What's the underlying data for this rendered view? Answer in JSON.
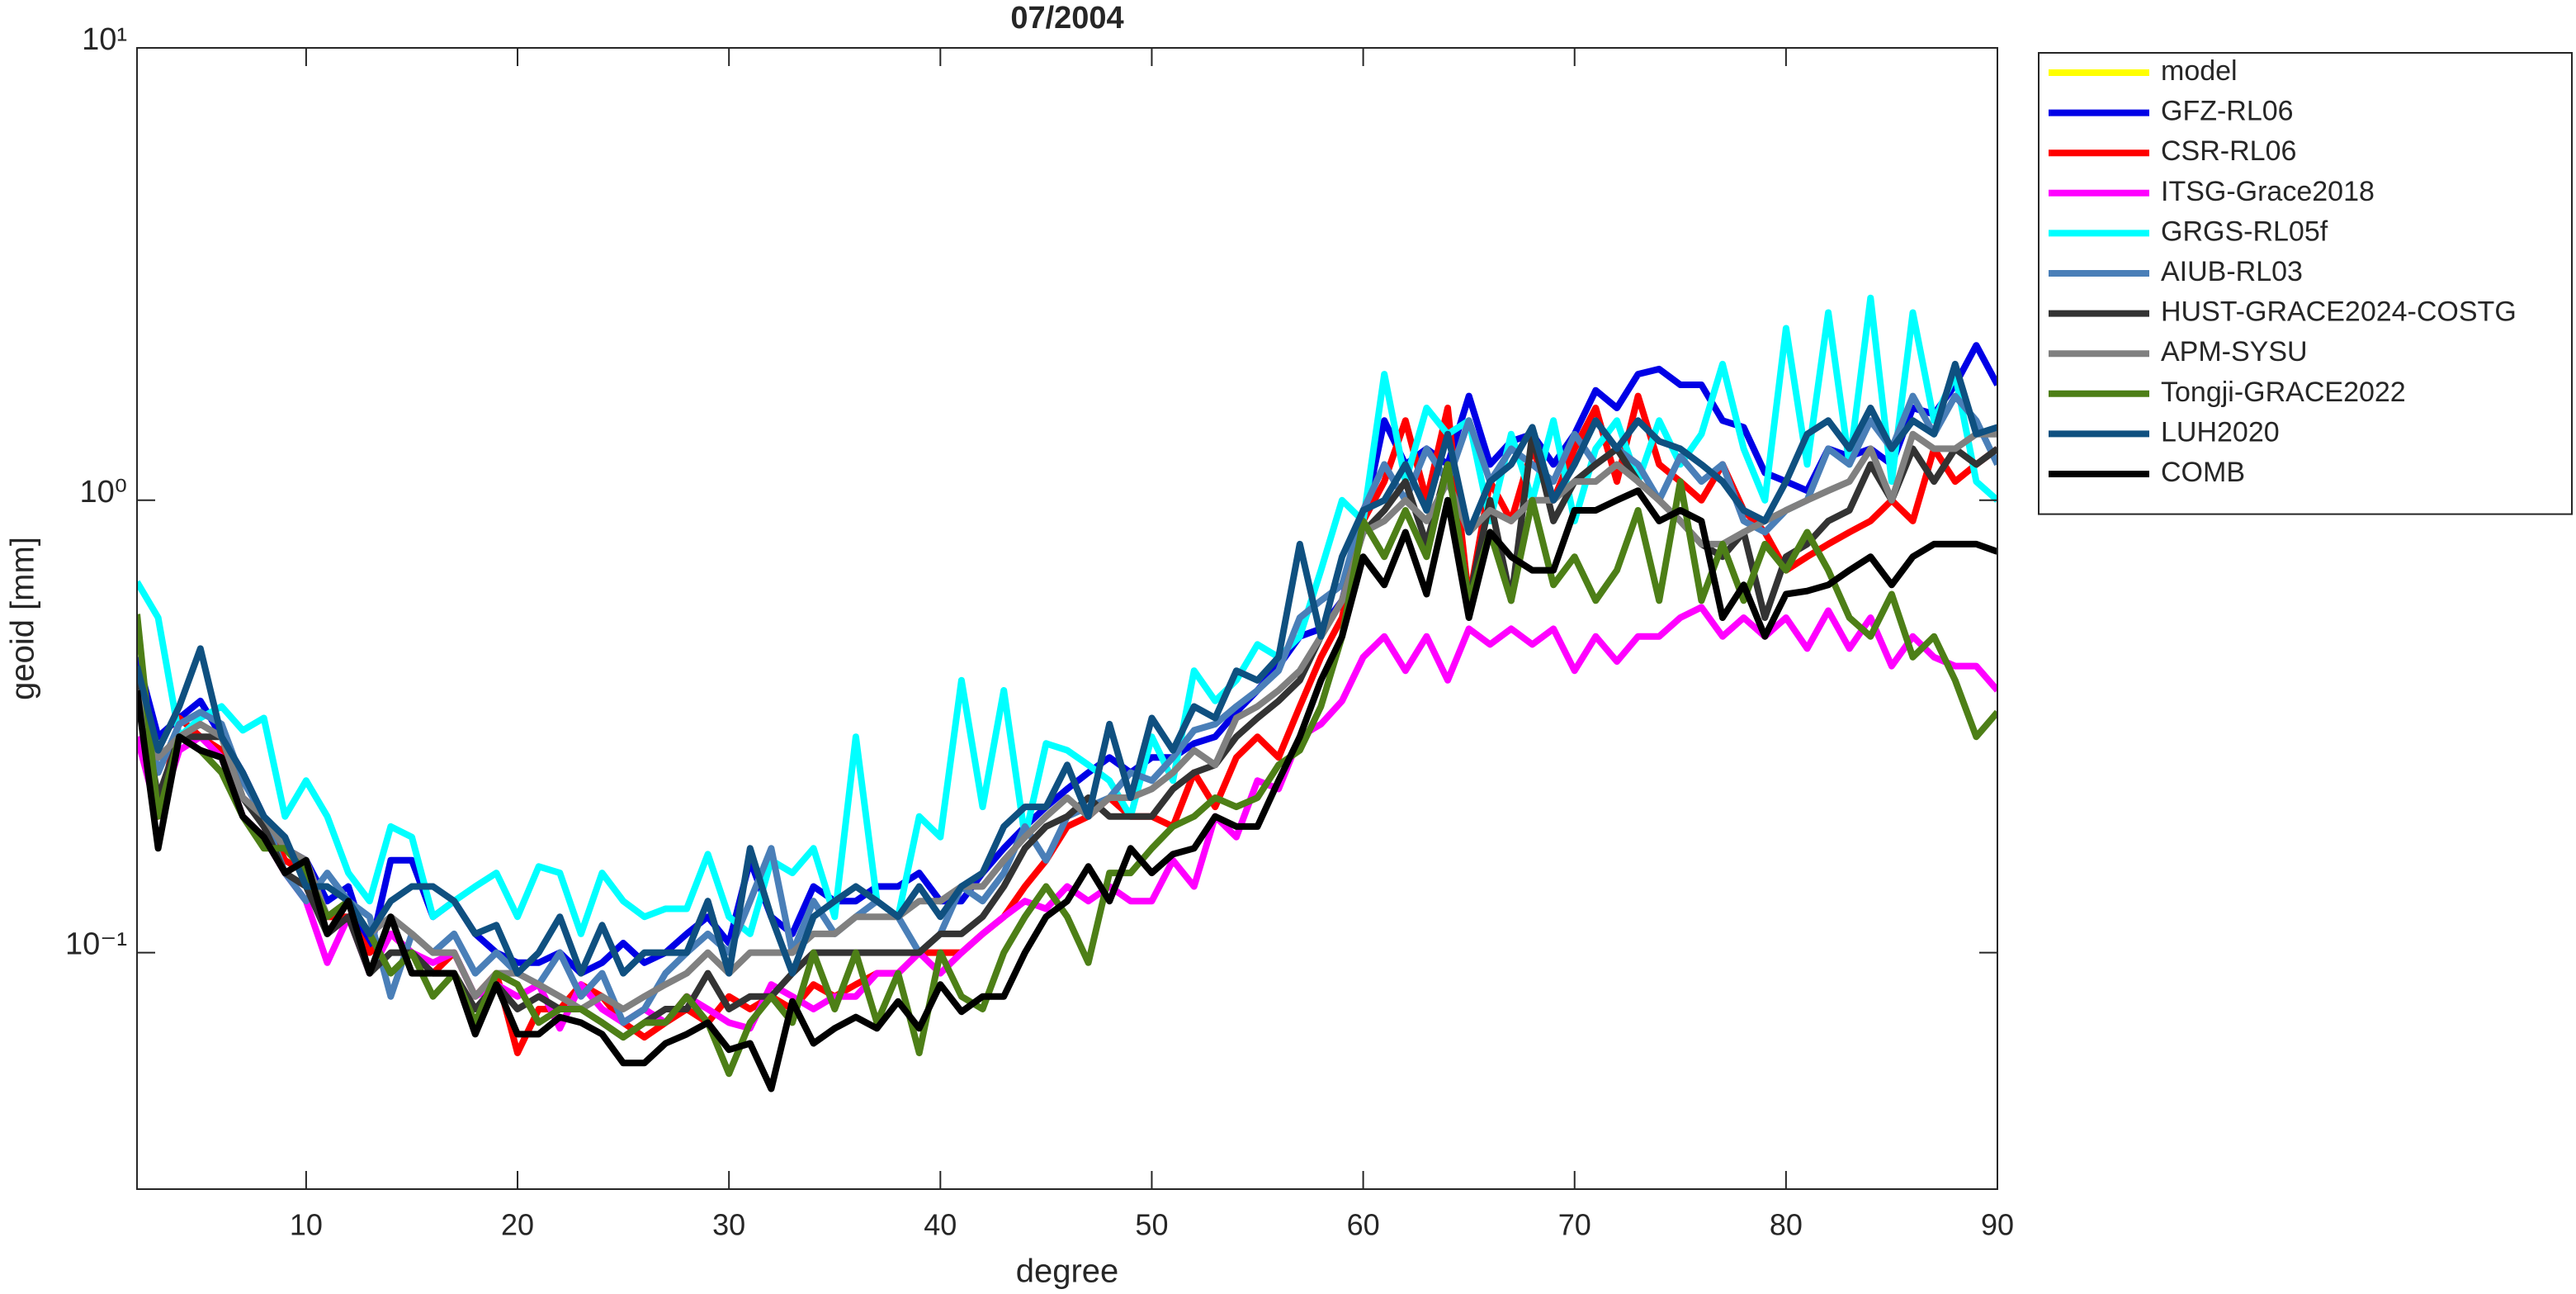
{
  "chart_data": {
    "type": "line",
    "title": "07/2004",
    "x_label": "degree",
    "y_label": "geoid [mm]",
    "log_y": true,
    "legend": "outside-right",
    "xlim": [
      2,
      90
    ],
    "xticks": [
      10,
      20,
      30,
      40,
      50,
      60,
      70,
      80,
      90
    ],
    "ylim": [
      0.03,
      10
    ],
    "yticks": [
      {
        "value": 0.1,
        "label": "10⁻¹"
      },
      {
        "value": 1,
        "label": "10⁰"
      },
      {
        "value": 10,
        "label": "10¹"
      }
    ],
    "x": [
      2,
      3,
      4,
      5,
      6,
      7,
      8,
      9,
      10,
      11,
      12,
      13,
      14,
      15,
      16,
      17,
      18,
      19,
      20,
      21,
      22,
      23,
      24,
      25,
      26,
      27,
      28,
      29,
      30,
      31,
      32,
      33,
      34,
      35,
      36,
      37,
      38,
      39,
      40,
      41,
      42,
      43,
      44,
      45,
      46,
      47,
      48,
      49,
      50,
      51,
      52,
      53,
      54,
      55,
      56,
      57,
      58,
      59,
      60,
      61,
      62,
      63,
      64,
      65,
      66,
      67,
      68,
      69,
      70,
      71,
      72,
      73,
      74,
      75,
      76,
      77,
      78,
      79,
      80,
      81,
      82,
      83,
      84,
      85,
      86,
      87,
      88,
      89,
      90
    ],
    "series": [
      {
        "name": "model",
        "color": "#ffff00",
        "values": [
          null,
          null,
          null,
          null,
          null,
          null,
          null,
          null,
          null,
          null,
          null,
          null,
          null,
          null,
          null,
          null,
          null,
          null,
          null,
          null,
          null,
          null,
          null,
          null,
          null,
          null,
          null,
          null,
          null,
          null,
          null,
          null,
          null,
          null,
          null,
          null,
          null,
          null,
          null,
          null,
          null,
          null,
          null,
          null,
          null,
          null,
          null,
          null,
          null,
          null,
          null,
          null,
          null,
          null,
          null,
          null,
          null,
          null,
          null,
          null,
          null,
          null,
          null,
          null,
          null,
          null,
          null,
          null,
          null,
          null,
          null,
          null,
          null,
          null,
          null,
          null,
          null,
          null,
          null,
          null,
          null,
          null,
          null,
          null,
          null,
          null,
          null,
          null,
          null
        ]
      },
      {
        "name": "GFZ-RL06",
        "color": "#0000e6",
        "values": [
          0.45,
          0.3,
          0.33,
          0.36,
          0.3,
          0.25,
          0.2,
          0.17,
          0.16,
          0.13,
          0.14,
          0.1,
          0.16,
          0.16,
          0.12,
          0.13,
          0.11,
          0.1,
          0.095,
          0.095,
          0.1,
          0.09,
          0.095,
          0.105,
          0.095,
          0.1,
          0.11,
          0.12,
          0.105,
          0.16,
          0.12,
          0.11,
          0.14,
          0.13,
          0.13,
          0.14,
          0.14,
          0.15,
          0.13,
          0.13,
          0.15,
          0.17,
          0.19,
          0.21,
          0.23,
          0.25,
          0.27,
          0.25,
          0.27,
          0.27,
          0.29,
          0.3,
          0.34,
          0.38,
          0.43,
          0.5,
          0.52,
          0.6,
          0.9,
          1.5,
          1.2,
          1.3,
          1.2,
          1.7,
          1.2,
          1.35,
          1.4,
          1.2,
          1.4,
          1.75,
          1.6,
          1.9,
          1.95,
          1.8,
          1.8,
          1.5,
          1.45,
          1.15,
          1.1,
          1.05,
          1.3,
          1.25,
          1.3,
          1.2,
          1.6,
          1.55,
          1.8,
          2.2,
          1.8
        ]
      },
      {
        "name": "CSR-RL06",
        "color": "#ff0000",
        "values": [
          0.4,
          0.2,
          0.33,
          0.3,
          0.28,
          0.22,
          0.2,
          0.16,
          0.15,
          0.12,
          0.12,
          0.1,
          0.11,
          0.1,
          0.09,
          0.1,
          0.08,
          0.09,
          0.06,
          0.075,
          0.075,
          0.085,
          0.08,
          0.07,
          0.065,
          0.07,
          0.075,
          0.07,
          0.08,
          0.075,
          0.08,
          0.075,
          0.085,
          0.08,
          0.085,
          0.09,
          0.09,
          0.1,
          0.1,
          0.1,
          0.11,
          0.12,
          0.14,
          0.16,
          0.19,
          0.2,
          0.22,
          0.2,
          0.2,
          0.19,
          0.25,
          0.21,
          0.27,
          0.3,
          0.27,
          0.35,
          0.45,
          0.55,
          0.9,
          1.1,
          1.5,
          1.0,
          1.6,
          0.6,
          1.1,
          0.9,
          1.3,
          1.0,
          1.3,
          1.6,
          1.1,
          1.7,
          1.2,
          1.1,
          1.0,
          1.2,
          0.95,
          0.85,
          0.7,
          0.75,
          0.8,
          0.85,
          0.9,
          1.0,
          0.9,
          1.3,
          1.1,
          1.2,
          1.3
        ]
      },
      {
        "name": "ITSG-Grace2018",
        "color": "#ff00ff",
        "values": [
          0.3,
          0.2,
          0.28,
          0.3,
          0.27,
          0.2,
          0.18,
          0.15,
          0.13,
          0.095,
          0.12,
          0.09,
          0.11,
          0.1,
          0.095,
          0.1,
          0.08,
          0.085,
          0.08,
          0.085,
          0.068,
          0.085,
          0.075,
          0.07,
          0.075,
          0.07,
          0.08,
          0.075,
          0.07,
          0.068,
          0.085,
          0.08,
          0.075,
          0.08,
          0.08,
          0.09,
          0.09,
          0.1,
          0.09,
          0.1,
          0.11,
          0.12,
          0.13,
          0.125,
          0.14,
          0.13,
          0.14,
          0.13,
          0.13,
          0.16,
          0.14,
          0.2,
          0.18,
          0.24,
          0.23,
          0.3,
          0.32,
          0.36,
          0.45,
          0.5,
          0.42,
          0.5,
          0.4,
          0.52,
          0.48,
          0.52,
          0.48,
          0.52,
          0.42,
          0.5,
          0.44,
          0.5,
          0.5,
          0.55,
          0.58,
          0.5,
          0.55,
          0.5,
          0.55,
          0.47,
          0.57,
          0.47,
          0.55,
          0.43,
          0.5,
          0.45,
          0.43,
          0.43,
          0.38
        ]
      },
      {
        "name": "GRGS-RL05f",
        "color": "#00ffff",
        "values": [
          0.66,
          0.55,
          0.3,
          0.33,
          0.35,
          0.31,
          0.33,
          0.2,
          0.24,
          0.2,
          0.15,
          0.13,
          0.19,
          0.18,
          0.12,
          0.13,
          0.14,
          0.15,
          0.12,
          0.155,
          0.15,
          0.11,
          0.15,
          0.13,
          0.12,
          0.125,
          0.125,
          0.165,
          0.12,
          0.11,
          0.16,
          0.15,
          0.17,
          0.12,
          0.3,
          0.13,
          0.12,
          0.2,
          0.18,
          0.4,
          0.21,
          0.38,
          0.18,
          0.29,
          0.28,
          0.26,
          0.24,
          0.2,
          0.3,
          0.24,
          0.42,
          0.36,
          0.4,
          0.48,
          0.45,
          0.5,
          0.7,
          1.0,
          0.9,
          1.9,
          1.1,
          1.6,
          1.4,
          1.5,
          0.9,
          1.4,
          1.0,
          1.5,
          0.9,
          1.3,
          1.5,
          1.1,
          1.5,
          1.2,
          1.4,
          2.0,
          1.3,
          1.0,
          2.4,
          1.2,
          2.6,
          1.2,
          2.8,
          1.1,
          2.6,
          1.5,
          1.9,
          1.1,
          1.0
        ]
      },
      {
        "name": "AIUB-RL03",
        "color": "#4a7fb8",
        "values": [
          0.42,
          0.25,
          0.32,
          0.34,
          0.32,
          0.24,
          0.2,
          0.15,
          0.13,
          0.15,
          0.13,
          0.12,
          0.08,
          0.11,
          0.1,
          0.11,
          0.09,
          0.1,
          0.09,
          0.085,
          0.1,
          0.08,
          0.09,
          0.07,
          0.075,
          0.09,
          0.1,
          0.11,
          0.1,
          0.13,
          0.17,
          0.1,
          0.13,
          0.11,
          0.12,
          0.13,
          0.12,
          0.1,
          0.11,
          0.14,
          0.13,
          0.15,
          0.19,
          0.16,
          0.2,
          0.21,
          0.22,
          0.25,
          0.24,
          0.27,
          0.31,
          0.32,
          0.35,
          0.38,
          0.42,
          0.55,
          0.6,
          0.65,
          0.95,
          1.2,
          1.0,
          1.3,
          1.1,
          1.5,
          1.1,
          1.3,
          1.2,
          1.1,
          1.4,
          1.2,
          1.3,
          1.2,
          1.0,
          1.25,
          1.1,
          1.2,
          0.9,
          0.85,
          0.95,
          1.0,
          1.3,
          1.2,
          1.5,
          1.3,
          1.7,
          1.4,
          1.7,
          1.5,
          1.2
        ]
      },
      {
        "name": "HUST-GRACE2024-COSTG",
        "color": "#333333",
        "values": [
          0.4,
          0.22,
          0.3,
          0.3,
          0.3,
          0.22,
          0.19,
          0.15,
          0.14,
          0.11,
          0.12,
          0.09,
          0.1,
          0.1,
          0.09,
          0.09,
          0.075,
          0.085,
          0.075,
          0.08,
          0.075,
          0.075,
          0.07,
          0.065,
          0.07,
          0.075,
          0.075,
          0.09,
          0.075,
          0.08,
          0.08,
          0.09,
          0.1,
          0.1,
          0.1,
          0.1,
          0.1,
          0.1,
          0.11,
          0.11,
          0.12,
          0.14,
          0.17,
          0.19,
          0.2,
          0.22,
          0.2,
          0.2,
          0.2,
          0.23,
          0.25,
          0.26,
          0.3,
          0.33,
          0.36,
          0.4,
          0.5,
          0.6,
          0.85,
          0.95,
          1.1,
          0.8,
          1.2,
          0.6,
          1.0,
          0.6,
          1.4,
          0.9,
          1.1,
          1.2,
          1.3,
          1.1,
          1.0,
          0.9,
          0.8,
          0.75,
          0.85,
          0.55,
          0.75,
          0.8,
          0.9,
          0.95,
          1.2,
          1.0,
          1.3,
          1.1,
          1.3,
          1.2,
          1.3
        ]
      },
      {
        "name": "APM-SYSU",
        "color": "#808080",
        "values": [
          0.38,
          0.27,
          0.3,
          0.32,
          0.3,
          0.22,
          0.2,
          0.17,
          0.16,
          0.12,
          0.13,
          0.11,
          0.12,
          0.11,
          0.1,
          0.1,
          0.08,
          0.09,
          0.09,
          0.085,
          0.08,
          0.075,
          0.08,
          0.075,
          0.08,
          0.085,
          0.09,
          0.1,
          0.09,
          0.1,
          0.1,
          0.1,
          0.11,
          0.11,
          0.12,
          0.12,
          0.12,
          0.13,
          0.13,
          0.14,
          0.14,
          0.16,
          0.18,
          0.2,
          0.22,
          0.2,
          0.22,
          0.22,
          0.23,
          0.25,
          0.28,
          0.26,
          0.33,
          0.35,
          0.38,
          0.42,
          0.5,
          0.6,
          0.85,
          0.9,
          1.0,
          0.9,
          1.1,
          0.85,
          0.95,
          0.9,
          1.0,
          1.0,
          1.1,
          1.1,
          1.2,
          1.1,
          1.0,
          0.9,
          0.8,
          0.8,
          0.85,
          0.9,
          0.95,
          1.0,
          1.05,
          1.1,
          1.3,
          1.0,
          1.4,
          1.3,
          1.3,
          1.4,
          1.4
        ]
      },
      {
        "name": "Tongji-GRACE2022",
        "color": "#4d7f17",
        "values": [
          0.56,
          0.2,
          0.3,
          0.28,
          0.25,
          0.2,
          0.17,
          0.17,
          0.15,
          0.12,
          0.13,
          0.11,
          0.09,
          0.1,
          0.08,
          0.09,
          0.07,
          0.09,
          0.085,
          0.07,
          0.075,
          0.075,
          0.07,
          0.065,
          0.07,
          0.07,
          0.08,
          0.07,
          0.054,
          0.07,
          0.08,
          0.07,
          0.1,
          0.075,
          0.1,
          0.07,
          0.09,
          0.06,
          0.1,
          0.08,
          0.075,
          0.1,
          0.12,
          0.14,
          0.12,
          0.095,
          0.15,
          0.15,
          0.17,
          0.19,
          0.2,
          0.22,
          0.21,
          0.22,
          0.26,
          0.28,
          0.35,
          0.5,
          0.9,
          0.75,
          0.95,
          0.75,
          1.2,
          0.6,
          0.85,
          0.6,
          1.0,
          0.65,
          0.75,
          0.6,
          0.7,
          0.95,
          0.6,
          1.1,
          0.6,
          0.8,
          0.6,
          0.8,
          0.7,
          0.85,
          0.7,
          0.55,
          0.5,
          0.62,
          0.45,
          0.5,
          0.4,
          0.3,
          0.34
        ]
      },
      {
        "name": "LUH2020",
        "color": "#0f5080",
        "values": [
          0.43,
          0.28,
          0.35,
          0.47,
          0.3,
          0.25,
          0.2,
          0.18,
          0.14,
          0.14,
          0.13,
          0.11,
          0.13,
          0.14,
          0.14,
          0.13,
          0.11,
          0.115,
          0.09,
          0.1,
          0.12,
          0.09,
          0.115,
          0.09,
          0.1,
          0.1,
          0.1,
          0.13,
          0.09,
          0.17,
          0.12,
          0.09,
          0.12,
          0.13,
          0.14,
          0.13,
          0.12,
          0.14,
          0.12,
          0.14,
          0.15,
          0.19,
          0.21,
          0.21,
          0.26,
          0.2,
          0.32,
          0.22,
          0.33,
          0.28,
          0.35,
          0.33,
          0.42,
          0.4,
          0.45,
          0.8,
          0.5,
          0.75,
          0.95,
          1.0,
          1.2,
          0.95,
          1.4,
          0.85,
          1.1,
          1.2,
          1.45,
          1.0,
          1.2,
          1.5,
          1.3,
          1.5,
          1.35,
          1.3,
          1.2,
          1.1,
          0.95,
          0.9,
          1.1,
          1.4,
          1.5,
          1.3,
          1.6,
          1.3,
          1.5,
          1.4,
          2.0,
          1.4,
          1.45
        ]
      },
      {
        "name": "COMB",
        "color": "#000000",
        "values": [
          0.38,
          0.17,
          0.3,
          0.28,
          0.27,
          0.2,
          0.18,
          0.15,
          0.16,
          0.11,
          0.13,
          0.09,
          0.12,
          0.09,
          0.09,
          0.09,
          0.066,
          0.085,
          0.066,
          0.066,
          0.072,
          0.07,
          0.066,
          0.057,
          0.057,
          0.063,
          0.066,
          0.07,
          0.061,
          0.063,
          0.05,
          0.078,
          0.063,
          0.068,
          0.072,
          0.068,
          0.078,
          0.068,
          0.085,
          0.074,
          0.08,
          0.08,
          0.1,
          0.12,
          0.13,
          0.155,
          0.13,
          0.17,
          0.15,
          0.165,
          0.17,
          0.2,
          0.19,
          0.19,
          0.24,
          0.3,
          0.4,
          0.5,
          0.75,
          0.65,
          0.85,
          0.62,
          1.0,
          0.55,
          0.85,
          0.75,
          0.7,
          0.7,
          0.95,
          0.95,
          1.0,
          1.05,
          0.9,
          0.95,
          0.9,
          0.55,
          0.65,
          0.5,
          0.62,
          0.63,
          0.65,
          0.7,
          0.75,
          0.65,
          0.75,
          0.8,
          0.8,
          0.8,
          0.77
        ]
      }
    ]
  }
}
